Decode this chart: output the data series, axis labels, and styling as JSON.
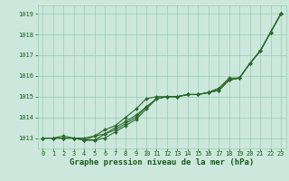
{
  "x": [
    0,
    1,
    2,
    3,
    4,
    5,
    6,
    7,
    8,
    9,
    10,
    11,
    12,
    13,
    14,
    15,
    16,
    17,
    18,
    19,
    20,
    21,
    22,
    23
  ],
  "line1": [
    1013.0,
    1013.0,
    1013.0,
    1013.0,
    1012.9,
    1012.9,
    1013.2,
    1013.5,
    1013.8,
    1014.1,
    1014.5,
    1014.9,
    1015.0,
    1015.0,
    1015.1,
    1015.1,
    1015.2,
    1015.3,
    1015.8,
    1015.9,
    1016.6,
    1017.2,
    1018.1,
    1019.0
  ],
  "line2": [
    1013.0,
    1013.0,
    1013.0,
    1013.0,
    1012.9,
    1013.1,
    1013.4,
    1013.6,
    1014.0,
    1014.4,
    1014.9,
    1015.0,
    1015.0,
    1015.0,
    1015.1,
    1015.1,
    1015.2,
    1015.4,
    1015.8,
    1015.9,
    1016.6,
    1017.2,
    1018.1,
    1019.0
  ],
  "line3": [
    1013.0,
    1013.0,
    1013.0,
    1013.0,
    1012.9,
    1012.9,
    1013.0,
    1013.3,
    1013.6,
    1013.9,
    1014.4,
    1014.9,
    1015.0,
    1015.0,
    1015.1,
    1015.1,
    1015.2,
    1015.4,
    1015.9,
    1015.9,
    1016.6,
    1017.2,
    1018.1,
    1019.0
  ],
  "line4": [
    1013.0,
    1013.0,
    1013.1,
    1013.0,
    1013.0,
    1013.1,
    1013.2,
    1013.4,
    1013.7,
    1014.0,
    1014.5,
    1014.9,
    1015.0,
    1015.0,
    1015.1,
    1015.1,
    1015.2,
    1015.3,
    1015.8,
    1015.9,
    1016.6,
    1017.2,
    1018.1,
    1019.0
  ],
  "line_color": "#2d6a2d",
  "bg_color": "#cce8dc",
  "grid_color": "#99ccb3",
  "ylabel_values": [
    1013,
    1014,
    1015,
    1016,
    1017,
    1018,
    1019
  ],
  "ylim": [
    1012.5,
    1019.4
  ],
  "xlim": [
    -0.5,
    23.5
  ],
  "xlabel": "Graphe pression niveau de la mer (hPa)",
  "text_color": "#1a5c1a",
  "marker": "D",
  "marker_size": 2.0,
  "linewidth": 0.8,
  "tick_fontsize": 5.0,
  "xlabel_fontsize": 6.5
}
